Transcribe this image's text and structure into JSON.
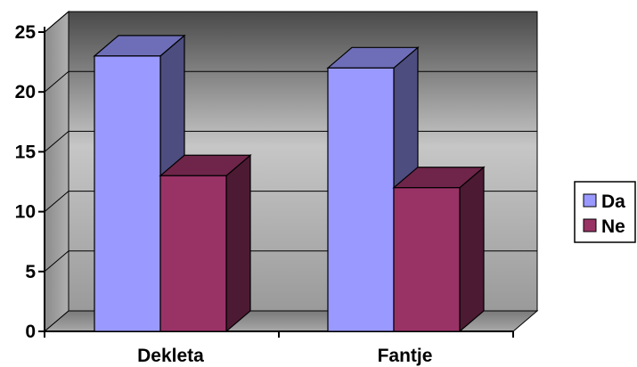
{
  "chart_data": {
    "type": "bar",
    "categories": [
      "Dekleta",
      "Fantje"
    ],
    "series": [
      {
        "name": "Da",
        "values": [
          23,
          22
        ],
        "color": "#9999ff"
      },
      {
        "name": "Ne",
        "values": [
          13,
          12
        ],
        "color": "#993366"
      }
    ],
    "title": "",
    "xlabel": "",
    "ylabel": "",
    "ylim": [
      0,
      25
    ],
    "yticks": [
      0,
      5,
      10,
      15,
      20,
      25
    ],
    "grid": true,
    "legend_position": "right",
    "style": "3d"
  }
}
